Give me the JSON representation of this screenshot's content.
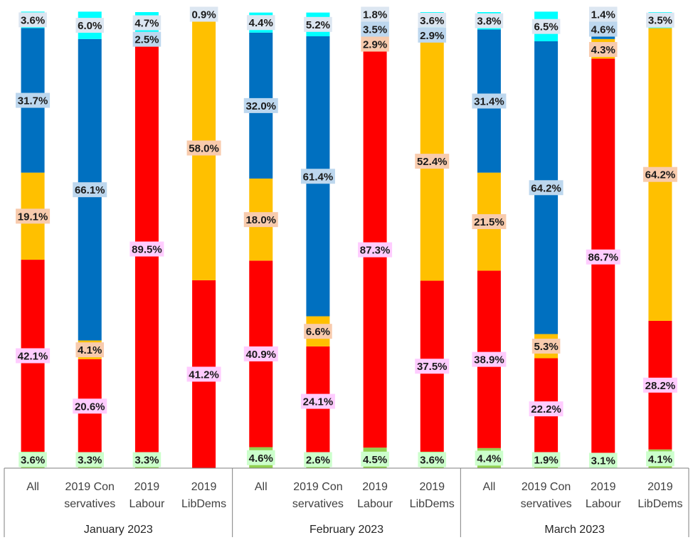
{
  "chart_data": {
    "type": "bar",
    "stacked": true,
    "percent": true,
    "groups": [
      {
        "label": "January 2023",
        "categories": [
          {
            "label": [
              "All"
            ],
            "values": [
              3.6,
              42.1,
              19.1,
              31.7,
              3.6
            ]
          },
          {
            "label": [
              "2019 Con",
              "servatives"
            ],
            "values": [
              3.3,
              20.6,
              4.1,
              66.1,
              6.0
            ]
          },
          {
            "label": [
              "2019",
              "Labour"
            ],
            "values": [
              3.3,
              89.5,
              0,
              2.5,
              4.7
            ]
          },
          {
            "label": [
              "2019",
              "LibDems"
            ],
            "values": [
              0,
              41.2,
              58.0,
              0,
              0.9
            ]
          }
        ]
      },
      {
        "label": "February 2023",
        "categories": [
          {
            "label": [
              "All"
            ],
            "values": [
              4.6,
              40.9,
              18.0,
              32.0,
              4.4
            ]
          },
          {
            "label": [
              "2019 Con",
              "servatives"
            ],
            "values": [
              2.6,
              24.1,
              6.6,
              61.4,
              5.2
            ]
          },
          {
            "label": [
              "2019",
              "Labour"
            ],
            "values": [
              4.5,
              87.3,
              2.9,
              3.5,
              1.8
            ]
          },
          {
            "label": [
              "2019",
              "LibDems"
            ],
            "values": [
              3.6,
              37.5,
              52.4,
              2.9,
              3.6
            ]
          }
        ]
      },
      {
        "label": "March 2023",
        "categories": [
          {
            "label": [
              "All"
            ],
            "values": [
              4.4,
              38.9,
              21.5,
              31.4,
              3.8
            ]
          },
          {
            "label": [
              "2019 Con",
              "servatives"
            ],
            "values": [
              1.9,
              22.2,
              5.3,
              64.2,
              6.5
            ]
          },
          {
            "label": [
              "2019",
              "Labour"
            ],
            "values": [
              3.1,
              86.7,
              4.3,
              4.6,
              1.4
            ]
          },
          {
            "label": [
              "2019",
              "LibDems"
            ],
            "values": [
              4.1,
              28.2,
              64.2,
              0,
              3.5
            ]
          }
        ]
      }
    ],
    "segment_colors": [
      "#92d050",
      "#ff0000",
      "#ffc000",
      "#0070c0",
      "#00ffff"
    ],
    "label_box_colors": [
      "#ccffcc",
      "#ffccff",
      "#f8cbad",
      "#bdd7ee",
      "#dce6f1"
    ],
    "ylim": [
      0,
      100
    ],
    "legend": "none",
    "grid": false
  }
}
